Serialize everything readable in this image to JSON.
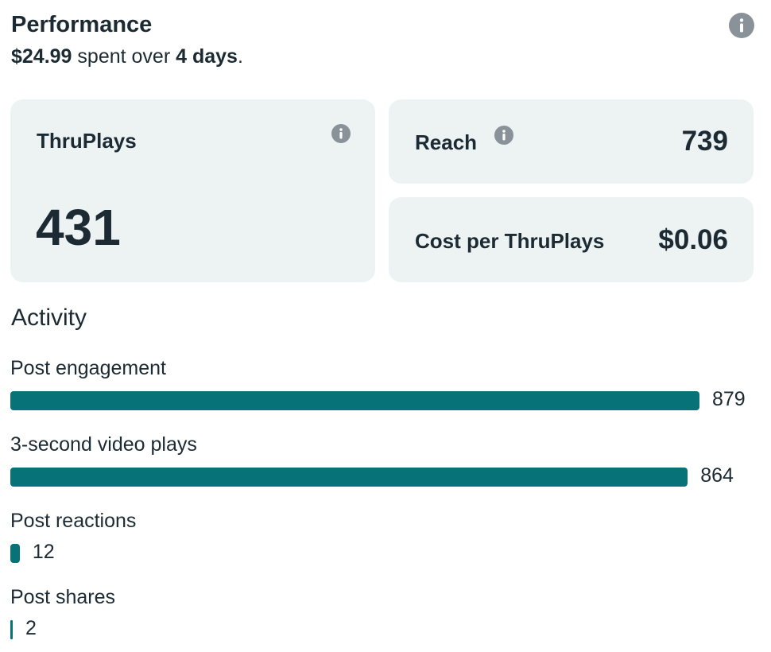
{
  "header": {
    "title": "Performance",
    "amount": "$24.99",
    "middle": "spent over",
    "duration": "4 days",
    "end": "."
  },
  "cards": [
    {
      "label": "ThruPlays",
      "value": 431
    },
    {
      "label": "Reach",
      "value": 739
    },
    {
      "label": "Cost per ThruPlays",
      "value": "$0.06"
    }
  ],
  "activity": {
    "title": "Activity",
    "chart_data": {
      "type": "bar",
      "color": "#077278",
      "categories": [
        "Post engagement",
        "3-second video plays",
        "Post reactions",
        "Post shares"
      ],
      "values": [
        879,
        864,
        12,
        2
      ]
    }
  }
}
